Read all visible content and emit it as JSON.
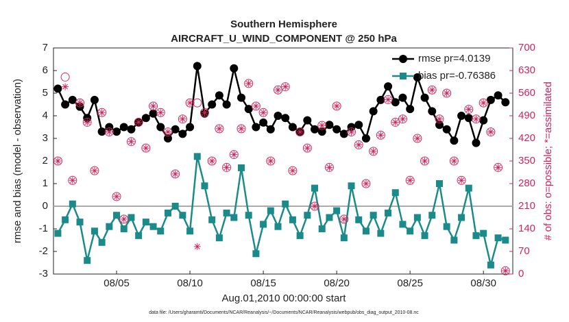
{
  "chart_data": {
    "type": "line",
    "title": "Southern Hemisphere",
    "subtitle": "AIRCRAFT_U_WIND_COMPONENT @ 250 hPa",
    "xlabel": "Aug.01,2010 00:00:00 start",
    "ylabel": "rmse and bias (model - observation)",
    "y2label": "# of obs: o=possible; *=assimilated",
    "footnote": "data file: /Users/gharamti/Documents/NCAR/Reanalysis/~/Documents/NCAR/Reanalysis/webpub/obs_diag_output_2010-08.nc",
    "xlim": [
      0.7,
      32.0
    ],
    "xticks": [
      {
        "value": 5,
        "label": "08/05"
      },
      {
        "value": 10,
        "label": "08/10"
      },
      {
        "value": 15,
        "label": "08/15"
      },
      {
        "value": 20,
        "label": "08/20"
      },
      {
        "value": 25,
        "label": "08/25"
      },
      {
        "value": 30,
        "label": "08/30"
      }
    ],
    "ylim": [
      -3,
      7
    ],
    "yticks": [
      -3,
      -2,
      -1,
      0,
      1,
      2,
      3,
      4,
      5,
      6,
      7
    ],
    "y2lim": [
      0,
      700
    ],
    "y2ticks": [
      0,
      70,
      140,
      210,
      280,
      350,
      420,
      490,
      560,
      630,
      700
    ],
    "hline": 0,
    "legend": "upper right",
    "x": [
      1.0,
      1.5,
      2.0,
      2.5,
      3.0,
      3.5,
      4.0,
      4.5,
      5.0,
      5.5,
      6.0,
      6.5,
      7.0,
      7.5,
      8.0,
      8.5,
      9.0,
      9.5,
      10.0,
      10.5,
      11.0,
      11.5,
      12.0,
      12.5,
      13.0,
      13.5,
      14.0,
      14.5,
      15.0,
      15.5,
      16.0,
      16.5,
      17.0,
      17.5,
      18.0,
      18.5,
      19.0,
      19.5,
      20.0,
      20.5,
      21.0,
      21.5,
      22.0,
      22.5,
      23.0,
      23.5,
      24.0,
      24.5,
      25.0,
      25.5,
      26.0,
      26.5,
      27.0,
      27.5,
      28.0,
      28.5,
      29.0,
      29.5,
      30.0,
      30.5,
      31.0,
      31.5
    ],
    "series": [
      {
        "name": "rmse pr=4.0139",
        "color": "#000000",
        "marker": "circle",
        "line": true,
        "values": [
          5.2,
          4.5,
          4.7,
          4.4,
          3.9,
          4.7,
          3.3,
          3.5,
          3.3,
          3.5,
          3.4,
          3.7,
          3.9,
          4.1,
          3.5,
          3.0,
          3.4,
          3.2,
          3.5,
          6.2,
          4.1,
          4.5,
          4.9,
          4.5,
          6.1,
          4.8,
          4.3,
          3.5,
          3.7,
          3.4,
          4.0,
          3.9,
          3.5,
          3.3,
          3.8,
          3.4,
          3.3,
          3.6,
          3.4,
          3.2,
          3.5,
          3.6,
          3.0,
          4.2,
          4.7,
          5.3,
          4.6,
          4.8,
          4.3,
          5.7,
          4.8,
          4.2,
          3.6,
          3.4,
          2.9,
          4.0,
          3.9,
          2.8,
          3.8,
          4.7,
          4.9,
          4.6
        ]
      },
      {
        "name": "bias pr=-0.76386",
        "color": "#1a8a8a",
        "marker": "square",
        "line": true,
        "values": [
          -1.2,
          -0.6,
          0.1,
          -0.7,
          -2.4,
          -1.1,
          -1.6,
          -0.9,
          -0.4,
          -1.0,
          -0.5,
          -1.3,
          -0.7,
          -0.9,
          -1.1,
          -0.3,
          0.0,
          -0.4,
          -1.1,
          2.2,
          0.9,
          -0.6,
          -1.4,
          -0.3,
          -0.5,
          1.7,
          -0.4,
          -2.1,
          -0.8,
          -0.2,
          -0.9,
          0.1,
          -0.6,
          -1.3,
          -0.4,
          0.8,
          -1.0,
          -0.5,
          -0.2,
          -1.4,
          0.9,
          -0.6,
          -1.1,
          -0.4,
          -1.2,
          -0.3,
          0.6,
          -0.8,
          -1.1,
          -0.5,
          -1.3,
          -0.4,
          1.0,
          -0.9,
          -1.5,
          -0.5,
          0.8,
          -1.3,
          -1.2,
          -2.6,
          -1.4,
          -1.5
        ]
      },
      {
        "color": "#d0245a",
        "marker": "open-circle",
        "line": false,
        "axis": "y2",
        "values": [
          350,
          610,
          290,
          530,
          470,
          320,
          500,
          440,
          240,
          170,
          410,
          470,
          390,
          520,
          500,
          440,
          310,
          480,
          530,
          530,
          500,
          350,
          450,
          330,
          370,
          450,
          590,
          520,
          500,
          350,
          570,
          580,
          320,
          440,
          390,
          210,
          460,
          330,
          520,
          170,
          440,
          400,
          280,
          380,
          430,
          540,
          470,
          480,
          290,
          420,
          350,
          570,
          480,
          560,
          350,
          290,
          510,
          480,
          530,
          440,
          330,
          10
        ]
      },
      {
        "color": "#d0245a",
        "marker": "asterisk",
        "line": false,
        "axis": "y2",
        "values": [
          350,
          580,
          290,
          530,
          470,
          320,
          500,
          440,
          240,
          170,
          410,
          470,
          390,
          520,
          500,
          440,
          310,
          480,
          530,
          85,
          500,
          350,
          450,
          330,
          370,
          450,
          590,
          520,
          500,
          350,
          570,
          580,
          320,
          440,
          390,
          210,
          460,
          330,
          520,
          170,
          440,
          400,
          280,
          380,
          430,
          540,
          470,
          480,
          290,
          420,
          350,
          570,
          480,
          560,
          350,
          290,
          510,
          480,
          530,
          440,
          330,
          10
        ]
      }
    ]
  }
}
